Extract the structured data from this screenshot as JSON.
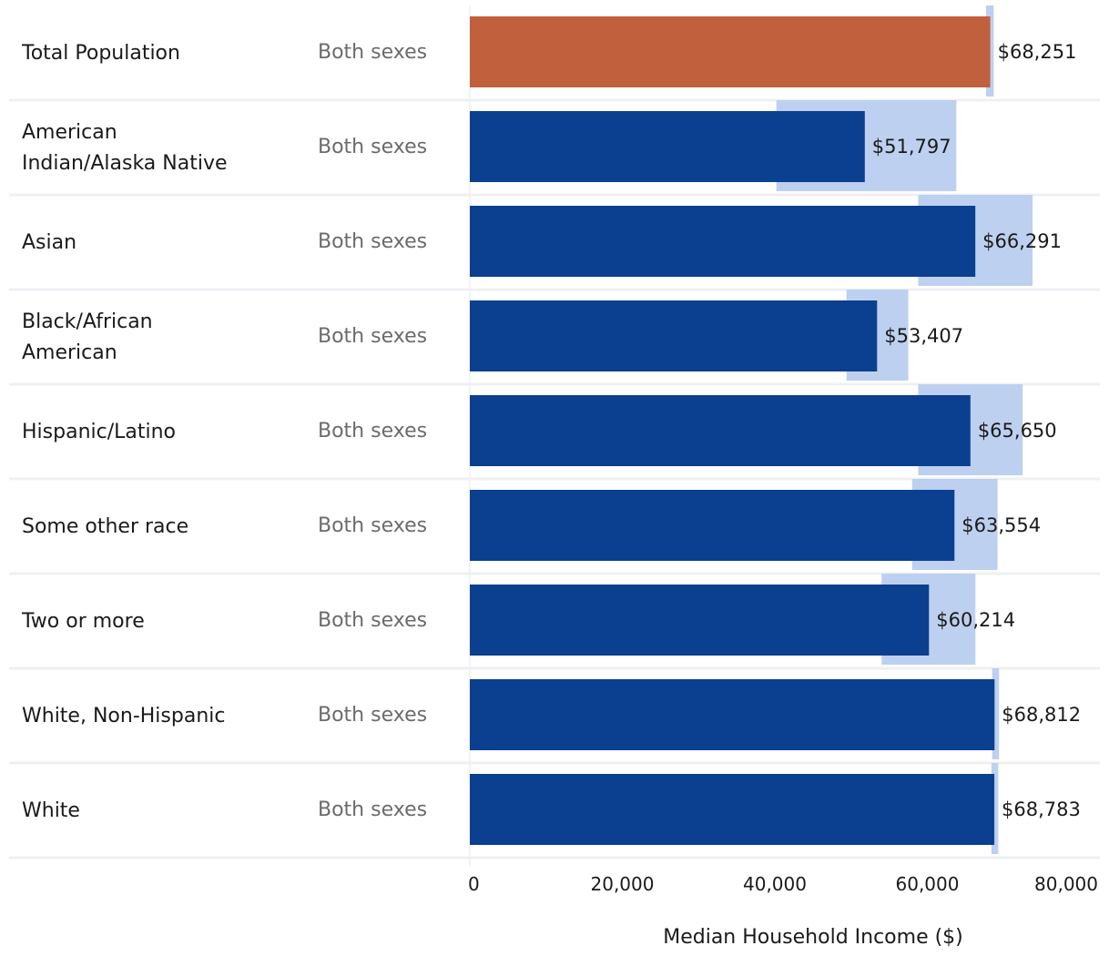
{
  "chart_data": {
    "type": "bar",
    "orientation": "horizontal",
    "xlabel": "Median Household Income ($)",
    "xlim": [
      0,
      80000
    ],
    "xticks": [
      0,
      20000,
      40000,
      60000,
      80000
    ],
    "xtick_labels": [
      "0",
      "20,000",
      "40,000",
      "60,000",
      "80,000"
    ],
    "grid": false,
    "legend": "none",
    "colors": {
      "highlight": "#C0603C",
      "bar": "#0B3F8F",
      "error_band": "#BDD0EF",
      "row_separator": "#EEF0F4"
    },
    "rows": [
      {
        "category": "Total Population",
        "group": "Both sexes",
        "value": 68251,
        "label": "$68,251",
        "moe_low": 67700,
        "moe_high": 68700,
        "highlight": true
      },
      {
        "category": "American Indian/Alaska Native",
        "category_lines": [
          "American",
          "Indian/Alaska Native"
        ],
        "group": "Both sexes",
        "value": 51797,
        "label": "$51,797",
        "moe_low": 40200,
        "moe_high": 63800,
        "highlight": false
      },
      {
        "category": "Asian",
        "group": "Both sexes",
        "value": 66291,
        "label": "$66,291",
        "moe_low": 58800,
        "moe_high": 73800,
        "highlight": false
      },
      {
        "category": "Black/African American",
        "category_lines": [
          "Black/African",
          "American"
        ],
        "group": "Both sexes",
        "value": 53407,
        "label": "$53,407",
        "moe_low": 49400,
        "moe_high": 57500,
        "highlight": false
      },
      {
        "category": "Hispanic/Latino",
        "group": "Both sexes",
        "value": 65650,
        "label": "$65,650",
        "moe_low": 58800,
        "moe_high": 72500,
        "highlight": false
      },
      {
        "category": "Some other race",
        "group": "Both sexes",
        "value": 63554,
        "label": "$63,554",
        "moe_low": 58000,
        "moe_high": 69200,
        "highlight": false
      },
      {
        "category": "Two or more",
        "group": "Both sexes",
        "value": 60214,
        "label": "$60,214",
        "moe_low": 54000,
        "moe_high": 66300,
        "highlight": false
      },
      {
        "category": "White, Non-Hispanic",
        "group": "Both sexes",
        "value": 68812,
        "label": "$68,812",
        "moe_low": 68500,
        "moe_high": 69400,
        "highlight": false
      },
      {
        "category": "White",
        "group": "Both sexes",
        "value": 68783,
        "label": "$68,783",
        "moe_low": 68400,
        "moe_high": 69300,
        "highlight": false
      }
    ]
  }
}
